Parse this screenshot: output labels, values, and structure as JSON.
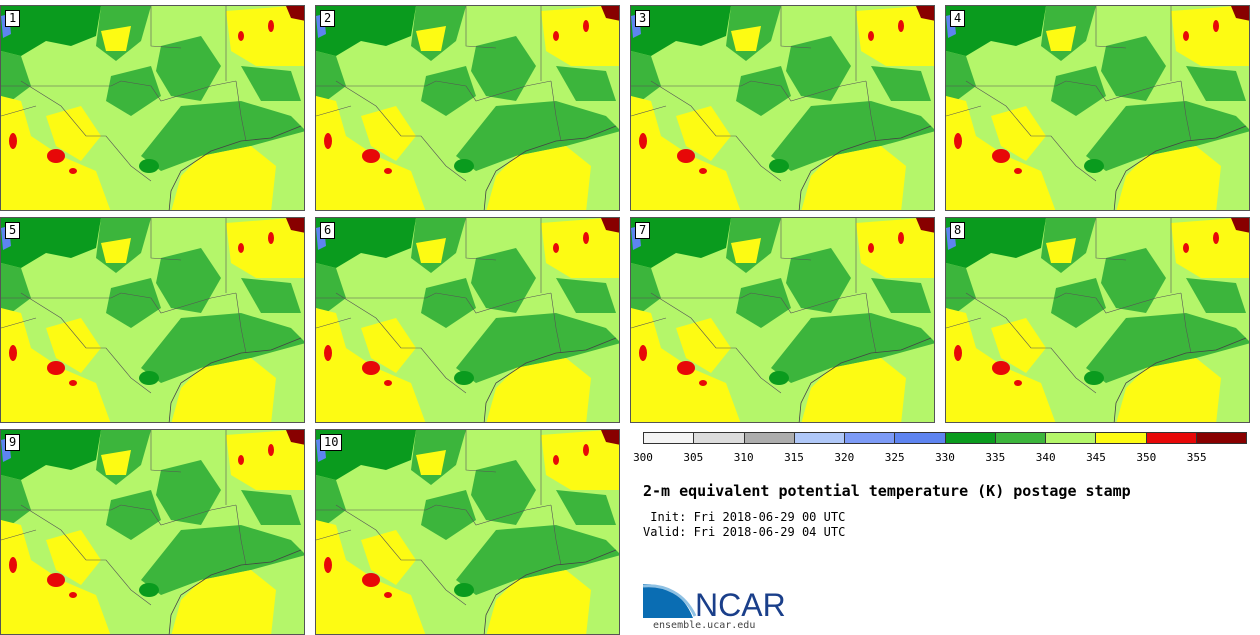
{
  "panels": [
    {
      "label": "1"
    },
    {
      "label": "2"
    },
    {
      "label": "3"
    },
    {
      "label": "4"
    },
    {
      "label": "5"
    },
    {
      "label": "6"
    },
    {
      "label": "7"
    },
    {
      "label": "8"
    },
    {
      "label": "9"
    },
    {
      "label": "10"
    }
  ],
  "colorbar": {
    "colors": [
      "#f4f4f4",
      "#dcdcdc",
      "#adadad",
      "#b0c8f8",
      "#7d9bf6",
      "#5e84f0",
      "#0a9b1e",
      "#3cb53c",
      "#b4f66a",
      "#fdfb13",
      "#e70808",
      "#880000"
    ],
    "ticks": [
      "300",
      "305",
      "310",
      "315",
      "320",
      "325",
      "330",
      "335",
      "340",
      "345",
      "350",
      "355"
    ]
  },
  "title": "2-m equivalent potential temperature (K) postage stamp",
  "init_line": " Init: Fri 2018-06-29 00 UTC",
  "valid_line": "Valid: Fri 2018-06-29 04 UTC",
  "logo": {
    "text": "NCAR",
    "url": "ensemble.ucar.edu"
  }
}
